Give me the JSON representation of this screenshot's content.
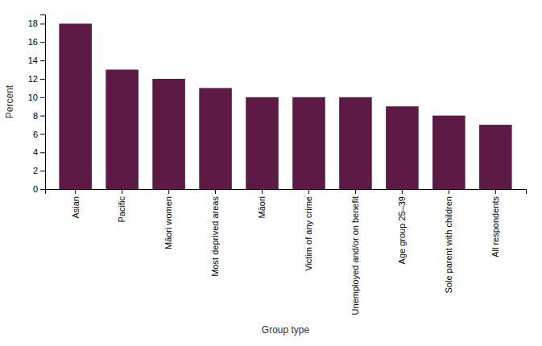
{
  "chart_data": {
    "type": "bar",
    "categories": [
      "Asian",
      "Pacific",
      "Māori women",
      "Most deprived areas",
      "Māori",
      "Victim of any crime",
      "Unemployed and/or on benefit",
      "Age group 25–39",
      "Sole parent with children",
      "All respondents"
    ],
    "values": [
      18,
      13,
      12,
      11,
      10,
      10,
      10,
      9,
      8,
      7
    ],
    "color": "#5C1A45",
    "xlabel": "Group type",
    "ylabel": "Percent",
    "ylim": [
      0,
      19
    ],
    "yticks": [
      0,
      2,
      4,
      6,
      8,
      10,
      12,
      14,
      16,
      18
    ],
    "grid": false
  }
}
